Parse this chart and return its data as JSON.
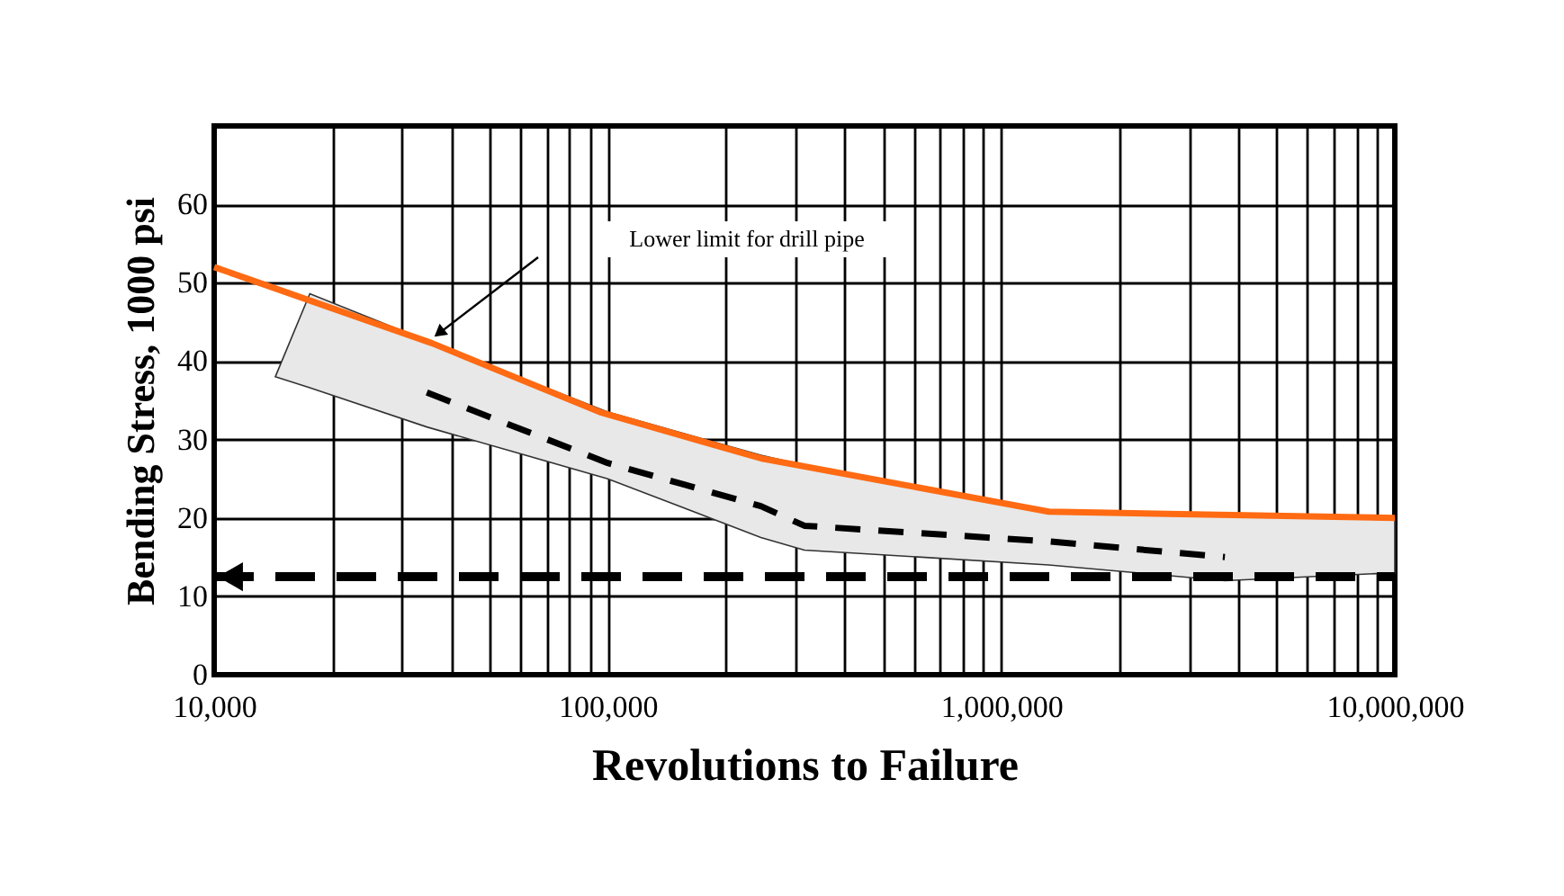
{
  "chart_data": {
    "type": "line",
    "xlabel": "Revolutions to Failure",
    "ylabel": "Bending Stress, 1000 psi",
    "log": "x",
    "xlim": [
      10000,
      10000000
    ],
    "ylim": [
      0,
      70
    ],
    "xticks": [
      {
        "value": 10000,
        "label": "10,000"
      },
      {
        "value": 20000,
        "label": null
      },
      {
        "value": 30000,
        "label": null
      },
      {
        "value": 40000,
        "label": null
      },
      {
        "value": 50000,
        "label": null
      },
      {
        "value": 60000,
        "label": null
      },
      {
        "value": 70000,
        "label": null
      },
      {
        "value": 80000,
        "label": null
      },
      {
        "value": 90000,
        "label": null
      },
      {
        "value": 100000,
        "label": "100,000"
      },
      {
        "value": 200000,
        "label": null
      },
      {
        "value": 300000,
        "label": null
      },
      {
        "value": 400000,
        "label": null
      },
      {
        "value": 500000,
        "label": null
      },
      {
        "value": 600000,
        "label": null
      },
      {
        "value": 700000,
        "label": null
      },
      {
        "value": 800000,
        "label": null
      },
      {
        "value": 900000,
        "label": null
      },
      {
        "value": 1000000,
        "label": "1,000,000"
      },
      {
        "value": 2000000,
        "label": null
      },
      {
        "value": 3000000,
        "label": null
      },
      {
        "value": 4000000,
        "label": null
      },
      {
        "value": 5000000,
        "label": null
      },
      {
        "value": 6000000,
        "label": null
      },
      {
        "value": 7000000,
        "label": null
      },
      {
        "value": 8000000,
        "label": null
      },
      {
        "value": 9000000,
        "label": null
      },
      {
        "value": 10000000,
        "label": "10,000,000"
      }
    ],
    "yticks": [
      0,
      10,
      20,
      30,
      40,
      50,
      60
    ],
    "grid": true,
    "marker": "none",
    "series": [
      {
        "color": "#ff6a13",
        "line_style": "solid",
        "x": [
          10000,
          35700,
          95500,
          245000,
          1320000,
          10000000
        ],
        "values": [
          52,
          42.3,
          33.5,
          27.6,
          20.8,
          20
        ]
      },
      {
        "color": "#000000",
        "line_style": "dashed",
        "x": [
          14300,
          17500,
          34700,
          100000,
          245000,
          316000,
          1320000,
          3700000,
          10000000
        ],
        "values": [
          null,
          null,
          36,
          27,
          21.5,
          19,
          17,
          15,
          null
        ],
        "lower": [
          38,
          36.6,
          31.6,
          25,
          17.5,
          15.9,
          14,
          12,
          13
        ],
        "upper": [
          38,
          48.6,
          42.6,
          33.5,
          28,
          26.7,
          21,
          20.5,
          20
        ]
      }
    ],
    "ref_lines": [
      {
        "axis": "y",
        "value": 12.5,
        "color": "#000000",
        "line_style": "dashed"
      }
    ],
    "annotations": [
      "Lower limit for drill pipe"
    ]
  }
}
